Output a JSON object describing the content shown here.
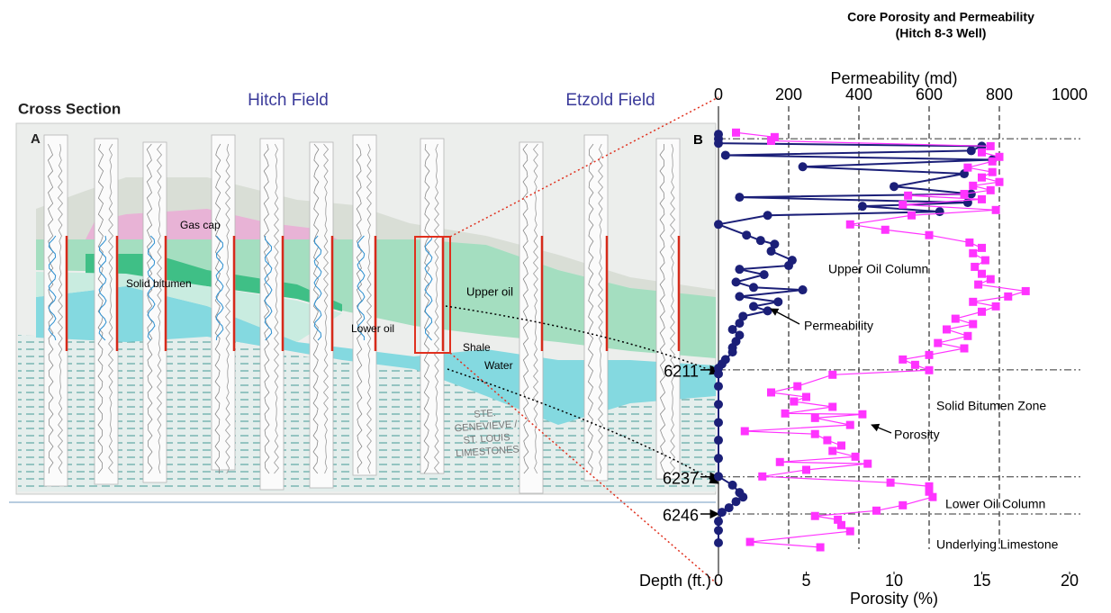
{
  "cross_section": {
    "title": "Cross Section",
    "label": "A",
    "fields": [
      "Hitch Field",
      "Etzold Field"
    ],
    "zones": [
      "Gas cap",
      "Solid bitumen",
      "Upper oil",
      "Lower oil",
      "Shale",
      "Water"
    ],
    "formation": [
      "STE.",
      "GENEVIEVE /",
      "ST. LOUIS",
      "LIMESTONES"
    ]
  },
  "chart_data": {
    "type": "line",
    "title": "Core Porosity and Permeability",
    "subtitle": "(Hitch 8-3 Well)",
    "panel_label": "B",
    "xlabel": "Porosity (%)",
    "x2label": "Permeability (md)",
    "ylabel": "Depth (ft.)",
    "xlim": [
      0,
      20
    ],
    "xticks": [
      0,
      5,
      10,
      15,
      20
    ],
    "x2lim": [
      0,
      1000
    ],
    "x2ticks": [
      0,
      200,
      400,
      600,
      800,
      1000
    ],
    "ylim": [
      6147,
      6260
    ],
    "yticks": [
      6211,
      6237,
      6246
    ],
    "grid": true,
    "zone_lines": [
      6154.9,
      6211,
      6237,
      6246
    ],
    "annotations": [
      "Upper Oil Column",
      "Permeability",
      "Solid Bitumen Zone",
      "Porosity",
      "Lower Oil Column",
      "Underlying Limestone"
    ],
    "series": [
      {
        "name": "Permeability",
        "color": "#1b1f78",
        "marker": "circle",
        "axis": "x2",
        "depth": [
          6153.8,
          6154.9,
          6156.0,
          6156.7,
          6157.8,
          6158.9,
          6160.0,
          6161.7,
          6163.4,
          6166.5,
          6168.3,
          6169.1,
          6170.4,
          6171.3,
          6172.6,
          6173.5,
          6175.7,
          6178.3,
          6179.6,
          6180.5,
          6182.2,
          6184.4,
          6185.7,
          6186.6,
          6187.9,
          6189.7,
          6191.0,
          6191.6,
          6193.2,
          6194.5,
          6195.6,
          6196.7,
          6198.0,
          6199.7,
          6201.2,
          6202.6,
          6204.1,
          6205.6,
          6206.7,
          6208.5,
          6209.6,
          6210.6,
          6212.0,
          6215.0,
          6219.4,
          6223.8,
          6228.1,
          6232.5,
          6236.9,
          6239.0,
          6240.8,
          6241.9,
          6243.0,
          6244.5,
          6245.6,
          6247.8,
          6250.0,
          6253.0
        ],
        "values": [
          0,
          0,
          0,
          750,
          720,
          20,
          780,
          240,
          700,
          500,
          720,
          60,
          710,
          410,
          630,
          140,
          0,
          80,
          120,
          160,
          150,
          210,
          200,
          60,
          130,
          50,
          100,
          240,
          60,
          170,
          100,
          140,
          70,
          60,
          40,
          60,
          50,
          40,
          40,
          20,
          10,
          0,
          0,
          0,
          0,
          0,
          0,
          0,
          0,
          40,
          60,
          70,
          50,
          30,
          10,
          0,
          0,
          0
        ]
      },
      {
        "name": "Porosity",
        "color": "#ff33ff",
        "marker": "square",
        "depth": [
          6153.4,
          6154.5,
          6155.4,
          6156.7,
          6158.2,
          6159.3,
          6160.4,
          6161.9,
          6163.0,
          6164.3,
          6165.4,
          6166.3,
          6167.4,
          6168.3,
          6168.7,
          6169.6,
          6170.9,
          6172.2,
          6173.5,
          6175.7,
          6177.0,
          6178.3,
          6180.1,
          6181.4,
          6182.7,
          6184.4,
          6186.0,
          6187.7,
          6189.0,
          6190.3,
          6191.9,
          6193.2,
          6194.5,
          6195.6,
          6196.9,
          6198.6,
          6199.9,
          6201.2,
          6202.8,
          6204.5,
          6205.8,
          6207.4,
          6208.5,
          6209.8,
          6211.1,
          6212.2,
          6215.0,
          6216.5,
          6217.6,
          6218.7,
          6220.0,
          6221.6,
          6221.8,
          6222.7,
          6224.4,
          6225.9,
          6226.6,
          6228.1,
          6229.4,
          6230.7,
          6232.1,
          6233.4,
          6233.8,
          6235.3,
          6236.9,
          6238.4,
          6239.3,
          6240.6,
          6241.9,
          6243.9,
          6245.2,
          6246.5,
          6247.4,
          6248.7,
          6250.2,
          6252.8,
          6254.1
        ],
        "values": [
          1.0,
          3.2,
          3.0,
          15.5,
          15.0,
          16.0,
          15.6,
          14.2,
          15.6,
          15.0,
          16.0,
          14.5,
          15.5,
          14.0,
          10.8,
          15.0,
          10.5,
          15.8,
          11.0,
          7.5,
          9.5,
          12.0,
          14.3,
          15.0,
          14.5,
          15.2,
          14.6,
          15.0,
          15.5,
          14.8,
          17.5,
          16.5,
          14.5,
          15.8,
          15.0,
          13.5,
          14.5,
          13.0,
          14.2,
          12.5,
          14.0,
          12.0,
          10.5,
          11.2,
          12.0,
          6.5,
          4.5,
          3.0,
          5.0,
          4.3,
          6.5,
          3.8,
          8.2,
          5.5,
          7.5,
          1.5,
          5.5,
          6.2,
          7.0,
          6.5,
          7.8,
          3.5,
          8.5,
          5.0,
          2.5,
          9.8,
          12.0,
          12.0,
          12.2,
          10.5,
          9.0,
          5.5,
          6.8,
          7.0,
          7.5,
          1.8,
          5.8
        ]
      }
    ]
  }
}
